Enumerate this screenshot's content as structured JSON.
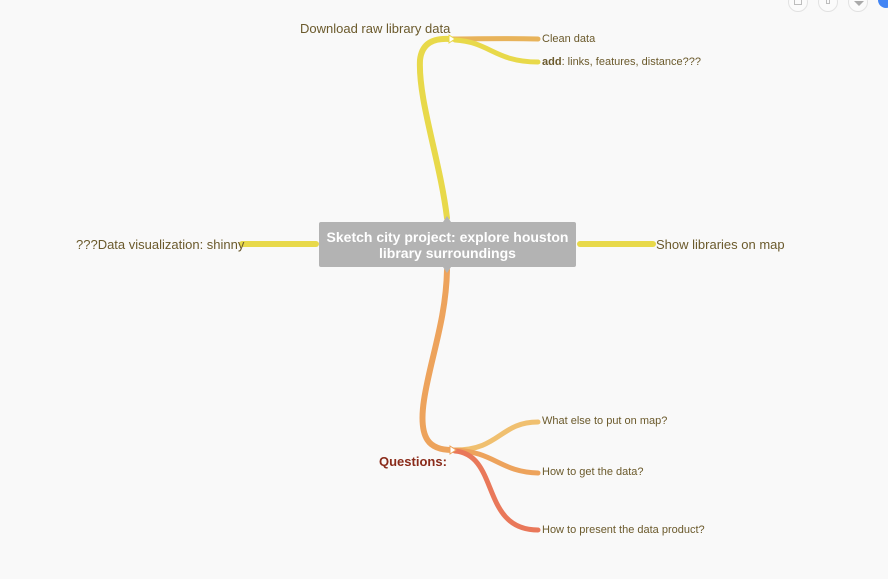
{
  "mindmap": {
    "root": {
      "line1": "Sketch city project: explore houston",
      "line2": "library surroundings"
    },
    "top_branch": {
      "label": "Download raw library data",
      "children": [
        {
          "label": "Clean data"
        },
        {
          "bold": "add",
          "rest": ": links, features, distance???"
        }
      ]
    },
    "left_branch": {
      "label": "???Data visualization: shinny"
    },
    "right_branch": {
      "label": "Show libraries on map"
    },
    "bottom_branch": {
      "label": "Questions:",
      "children": [
        {
          "label": "What else to put on map?"
        },
        {
          "label": "How to get the data?"
        },
        {
          "label": "How to present the data product?"
        }
      ]
    }
  },
  "colors": {
    "background": "#f9f9f9",
    "root_node": "#b3b3b3",
    "yellow_branch": "#e8d94a",
    "orange_branch": "#eda35c",
    "coral_branch": "#e9785a",
    "light_orange_branch": "#f0b86a",
    "question_text": "#8a2b1a",
    "label_text": "#6b5a2c"
  },
  "toolbar": {
    "icons": [
      "window-icon",
      "document-icon",
      "download-icon",
      "avatar-icon"
    ]
  }
}
